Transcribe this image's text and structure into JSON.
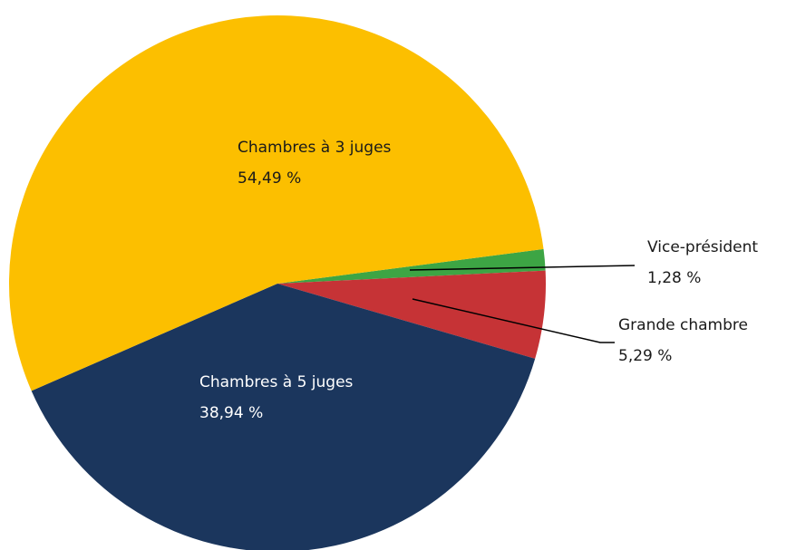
{
  "chart_data": {
    "type": "pie",
    "categories": [
      "Vice-président",
      "Grande chambre",
      "Chambres à 5 juges",
      "Chambres à 3 juges"
    ],
    "values": [
      1.28,
      5.29,
      38.94,
      54.49
    ],
    "value_labels": [
      "1,28 %",
      "5,29 %",
      "38,94 %",
      "54,49 %"
    ],
    "colors": [
      "#3da544",
      "#c63336",
      "#1b365d",
      "#fcbf00"
    ]
  }
}
